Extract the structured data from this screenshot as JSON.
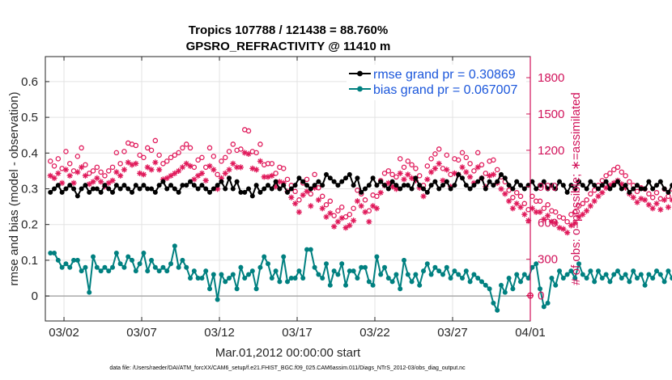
{
  "chart_data": {
    "type": "line",
    "title_line1": "Tropics 107788 / 121438 = 88.760%",
    "title_line2": "GPSRO_REFRACTIVITY @ 11410 m",
    "ylabel_left": "rmse and bias (model - observation)",
    "ylabel_right": "# of obs: o=possible; ∗=assimilated",
    "xlabel": "Mar.01,2012 00:00:00 start",
    "footnote": "data file: /Users/raeder/DAI/ATM_forcXX/CAM6_setup/f.e21.FHIST_BGC.f09_025.CAM6assim.011/Diags_NTrS_2012-03/obs_diag_output.nc",
    "xlim": [
      0.8,
      32.0
    ],
    "ylim_left": [
      -0.07,
      0.67
    ],
    "ylim_right": [
      -210,
      1974
    ],
    "grid": true,
    "legend_position": "top-right",
    "x_ticks": [
      {
        "value": 2,
        "label": "03/02"
      },
      {
        "value": 7,
        "label": "03/07"
      },
      {
        "value": 12,
        "label": "03/12"
      },
      {
        "value": 17,
        "label": "03/17"
      },
      {
        "value": 22,
        "label": "03/22"
      },
      {
        "value": 27,
        "label": "03/27"
      },
      {
        "value": 32,
        "label": "04/01"
      }
    ],
    "y_ticks_left": [
      {
        "value": 0,
        "label": "0"
      },
      {
        "value": 0.1,
        "label": "0.1"
      },
      {
        "value": 0.2,
        "label": "0.2"
      },
      {
        "value": 0.3,
        "label": "0.3"
      },
      {
        "value": 0.4,
        "label": "0.4"
      },
      {
        "value": 0.5,
        "label": "0.5"
      },
      {
        "value": 0.6,
        "label": "0.6"
      }
    ],
    "y_ticks_right": [
      {
        "value": 0,
        "label": "0"
      },
      {
        "value": 300,
        "label": "300"
      },
      {
        "value": 600,
        "label": "600"
      },
      {
        "value": 900,
        "label": "900"
      },
      {
        "value": 1200,
        "label": "1200"
      },
      {
        "value": 1500,
        "label": "1500"
      },
      {
        "value": 1800,
        "label": "1800"
      }
    ],
    "time": {
      "start": 1.125,
      "step": 0.25
    },
    "series": [
      {
        "name": "rmse",
        "legend_label": "rmse grand pr = 0.30869",
        "color": "#000000",
        "axis": "left",
        "values": [
          0.29,
          0.3,
          0.31,
          0.29,
          0.3,
          0.31,
          0.3,
          0.28,
          0.3,
          0.31,
          0.29,
          0.3,
          0.3,
          0.29,
          0.31,
          0.3,
          0.29,
          0.31,
          0.3,
          0.31,
          0.3,
          0.29,
          0.31,
          0.3,
          0.31,
          0.3,
          0.3,
          0.29,
          0.31,
          0.32,
          0.3,
          0.31,
          0.3,
          0.29,
          0.31,
          0.31,
          0.32,
          0.31,
          0.3,
          0.31,
          0.3,
          0.29,
          0.3,
          0.31,
          0.32,
          0.3,
          0.33,
          0.3,
          0.32,
          0.29,
          0.29,
          0.3,
          0.28,
          0.31,
          0.29,
          0.3,
          0.31,
          0.3,
          0.32,
          0.3,
          0.31,
          0.29,
          0.3,
          0.31,
          0.33,
          0.32,
          0.31,
          0.3,
          0.31,
          0.32,
          0.31,
          0.34,
          0.33,
          0.32,
          0.31,
          0.32,
          0.33,
          0.34,
          0.31,
          0.33,
          0.29,
          0.3,
          0.31,
          0.33,
          0.31,
          0.32,
          0.31,
          0.3,
          0.32,
          0.31,
          0.3,
          0.31,
          0.31,
          0.3,
          0.33,
          0.31,
          0.3,
          0.29,
          0.31,
          0.32,
          0.3,
          0.31,
          0.32,
          0.3,
          0.31,
          0.34,
          0.33,
          0.31,
          0.3,
          0.31,
          0.32,
          0.33,
          0.3,
          0.32,
          0.31,
          0.32,
          0.34,
          0.33,
          0.31,
          0.3,
          0.32,
          0.31,
          0.3,
          0.31,
          0.32,
          0.3,
          0.31,
          0.32,
          0.3,
          0.31,
          0.3,
          0.32,
          0.31,
          0.29,
          0.31,
          0.3,
          0.32,
          0.31,
          0.3,
          0.32,
          0.31,
          0.3,
          0.31,
          0.32,
          0.3,
          0.31,
          0.32,
          0.3,
          0.31,
          0.29,
          0.3,
          0.31,
          0.3,
          0.3,
          0.32,
          0.3,
          0.31,
          0.32,
          0.3,
          0.29,
          0.31,
          0.32,
          0.3,
          0.31,
          0.3,
          0.33,
          0.3,
          0.32,
          0.31,
          0.3,
          0.34,
          0.31,
          0.3,
          0.32,
          0.3,
          0.33,
          0.31,
          0.3,
          0.32,
          0.3,
          0.31,
          0.3,
          0.31,
          0.33,
          0.3,
          0.32,
          0.31,
          0.33,
          0.3,
          0.32,
          0.31,
          0.29,
          0.32,
          0.33,
          0.31,
          0.32,
          0.3,
          0.31,
          0.34,
          0.32,
          0.31,
          0.3,
          0.32,
          0.33,
          0.31,
          0.32,
          0.3,
          0.31,
          0.29
        ]
      },
      {
        "name": "bias",
        "legend_label": "bias grand pr = 0.067007",
        "color": "#008080",
        "axis": "left",
        "values": [
          0.12,
          0.12,
          0.1,
          0.08,
          0.09,
          0.08,
          0.1,
          0.1,
          0.07,
          0.08,
          0.01,
          0.11,
          0.08,
          0.07,
          0.08,
          0.07,
          0.08,
          0.12,
          0.09,
          0.08,
          0.11,
          0.1,
          0.07,
          0.09,
          0.12,
          0.07,
          0.1,
          0.08,
          0.07,
          0.08,
          0.07,
          0.09,
          0.14,
          0.08,
          0.1,
          0.08,
          0.05,
          0.07,
          0.05,
          0.05,
          0.07,
          0.02,
          0.06,
          -0.01,
          0.06,
          0.04,
          0.05,
          0.06,
          0.02,
          0.08,
          0.05,
          0.06,
          0.07,
          0.02,
          0.08,
          0.11,
          0.09,
          0.05,
          0.07,
          0.04,
          0.11,
          0.04,
          0.05,
          0.05,
          0.07,
          0.05,
          0.13,
          0.13,
          0.08,
          0.06,
          0.05,
          0.09,
          0.03,
          0.07,
          0.06,
          0.09,
          0.03,
          0.07,
          0.07,
          0.05,
          0.08,
          0.08,
          0.04,
          0.03,
          0.11,
          0.06,
          0.08,
          0.05,
          0.04,
          0.06,
          0.02,
          0.1,
          0.06,
          0.04,
          0.06,
          0.03,
          0.07,
          0.09,
          0.06,
          0.08,
          0.07,
          0.06,
          0.08,
          0.05,
          0.07,
          0.06,
          0.05,
          0.07,
          0.04,
          0.06,
          0.05,
          0.04,
          0.03,
          0.02,
          -0.02,
          -0.04,
          0.03,
          0.01,
          0.05,
          0.02,
          0.06,
          0.04,
          0.06,
          0.05,
          0.08,
          0.09,
          0.02,
          -0.03,
          -0.02,
          0.05,
          0.03,
          0.07,
          0.05,
          0.06,
          0.07,
          0.05,
          0.09,
          0.06,
          0.05,
          0.07,
          0.04,
          0.07,
          0.05,
          0.06,
          0.04,
          0.06,
          0.07,
          0.05,
          0.06,
          0.04,
          0.07,
          0.05,
          0.06,
          0.03,
          0.06,
          0.05,
          0.07,
          0.06,
          0.04,
          0.07,
          0.05,
          0.06,
          0.07,
          0.06,
          0.09,
          0.08,
          0.1,
          0.06,
          0.09,
          0.07,
          0.08,
          0.11,
          0.09,
          0.05,
          0.06,
          0.11,
          0.09,
          0.07,
          0.05,
          0.09,
          0.08,
          0.06,
          0.04,
          0.08,
          0.03,
          0.05,
          0.07,
          0.07,
          0.1,
          0.06,
          0.05,
          0.09,
          0.08,
          0.11,
          0.07,
          0.08,
          0.06,
          0.05,
          0.14,
          0.1,
          0.08,
          0.05,
          0.07,
          0.09,
          0.08,
          0.06
        ]
      },
      {
        "name": "possible",
        "color": "#e0195a",
        "axis": "right",
        "marker": "circle",
        "values": [
          1110,
          1070,
          1130,
          1050,
          1190,
          1090,
          1030,
          1150,
          1220,
          1080,
          1010,
          1030,
          1060,
          1020,
          990,
          1030,
          1060,
          1180,
          1090,
          1190,
          1260,
          1250,
          1240,
          1160,
          1140,
          1220,
          1200,
          1280,
          1160,
          1090,
          1110,
          1140,
          1160,
          1180,
          1220,
          1250,
          1220,
          1060,
          1120,
          1140,
          1060,
          1220,
          1150,
          1000,
          1110,
          1140,
          1190,
          1250,
          1200,
          1210,
          1370,
          1360,
          1190,
          1180,
          1250,
          1080,
          1090,
          1090,
          1010,
          1060,
          1050,
          960,
          910,
          860,
          790,
          930,
          960,
          840,
          1000,
          890,
          820,
          750,
          780,
          660,
          700,
          730,
          650,
          670,
          720,
          870,
          840,
          790,
          700,
          830,
          820,
          950,
          1010,
          1030,
          1000,
          980,
          1130,
          1060,
          1110,
          1080,
          1050,
          990,
          910,
          1070,
          1130,
          1170,
          1210,
          1050,
          1160,
          1000,
          1130,
          1120,
          1180,
          1140,
          1090,
          1030,
          1180,
          1080,
          1010,
          1110,
          1120,
          1040,
          980,
          940,
          870,
          810,
          850,
          820,
          760,
          710,
          820,
          780,
          780,
          720,
          750,
          700,
          690,
          650,
          640,
          610,
          670,
          690,
          740,
          760,
          790,
          840,
          870,
          910,
          950,
          990,
          1010,
          1040,
          1060,
          1020,
          990,
          940,
          910,
          860,
          890,
          880,
          840,
          810,
          850,
          800,
          880,
          820,
          880,
          900,
          960,
          980,
          1060,
          1030,
          920,
          1020,
          970,
          960,
          1000,
          870,
          1050,
          960,
          990,
          940,
          1010,
          1050,
          1000,
          1040,
          970,
          1050,
          990,
          1020,
          1070,
          940,
          1000,
          990,
          1020,
          1020,
          1040,
          970,
          990,
          1030,
          970,
          1010,
          990,
          1040,
          930,
          1060,
          970,
          1000,
          930,
          1050,
          980,
          1020,
          930
        ]
      },
      {
        "name": "assimilated",
        "color": "#e0195a",
        "axis": "right",
        "marker": "asterisk",
        "values": [
          990,
          970,
          1010,
          930,
          1040,
          990,
          930,
          1020,
          1060,
          990,
          920,
          940,
          970,
          940,
          900,
          930,
          950,
          1020,
          990,
          1040,
          1100,
          1080,
          1090,
          1010,
          1000,
          1060,
          1040,
          1100,
          1040,
          960,
          970,
          990,
          1010,
          1030,
          1060,
          1090,
          1070,
          960,
          990,
          1010,
          950,
          1070,
          1040,
          880,
          970,
          1010,
          1040,
          1090,
          1060,
          1060,
          1180,
          1170,
          1050,
          1040,
          1110,
          980,
          980,
          990,
          900,
          940,
          930,
          860,
          810,
          760,
          690,
          830,
          860,
          740,
          890,
          790,
          720,
          650,
          680,
          570,
          610,
          640,
          560,
          580,
          620,
          780,
          740,
          690,
          610,
          740,
          720,
          850,
          910,
          930,
          900,
          880,
          1010,
          960,
          1000,
          970,
          950,
          890,
          820,
          960,
          1020,
          1050,
          1090,
          950,
          1040,
          900,
          1010,
          1000,
          1060,
          1020,
          980,
          930,
          1060,
          970,
          900,
          990,
          1000,
          930,
          880,
          840,
          780,
          720,
          760,
          730,
          670,
          620,
          720,
          690,
          690,
          630,
          660,
          610,
          600,
          560,
          550,
          520,
          580,
          600,
          650,
          670,
          700,
          740,
          780,
          820,
          850,
          890,
          910,
          930,
          950,
          920,
          890,
          840,
          810,
          770,
          800,
          790,
          750,
          720,
          760,
          710,
          790,
          730,
          790,
          800,
          860,
          880,
          940,
          920,
          820,
          910,
          870,
          860,
          890,
          780,
          940,
          860,
          880,
          840,
          900,
          940,
          890,
          930,
          870,
          940,
          880,
          910,
          950,
          840,
          890,
          890,
          910,
          910,
          930,
          870,
          880,
          920,
          870,
          900,
          890,
          930,
          830,
          940,
          870,
          890,
          830,
          940,
          880,
          910,
          830
        ]
      }
    ]
  }
}
